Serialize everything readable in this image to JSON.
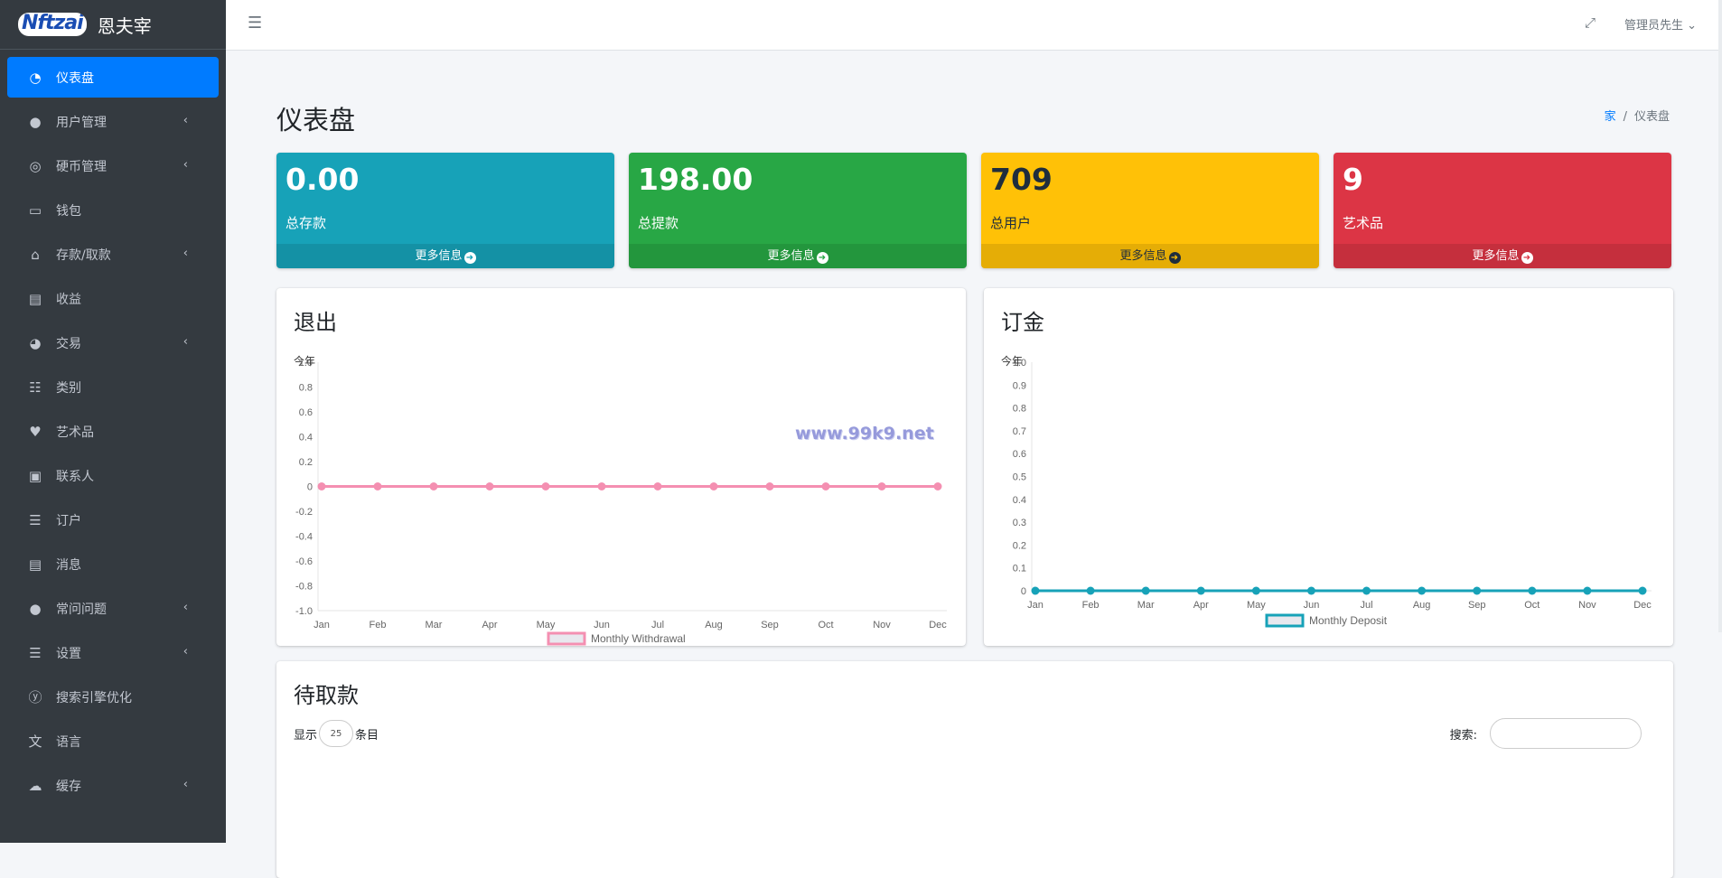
{
  "brand": {
    "logo_text": "Nftzai",
    "name": "恩夫宰"
  },
  "sidebar": {
    "items": [
      {
        "label": "仪表盘",
        "icon": "dashboard-icon",
        "glyph": "◔",
        "active": true,
        "chevron": false
      },
      {
        "label": "用户管理",
        "icon": "user-icon",
        "glyph": "●",
        "active": false,
        "chevron": true
      },
      {
        "label": "硬币管理",
        "icon": "coins-icon",
        "glyph": "◎",
        "active": false,
        "chevron": true
      },
      {
        "label": "钱包",
        "icon": "wallet-icon",
        "glyph": "▭",
        "active": false,
        "chevron": false
      },
      {
        "label": "存款/取款",
        "icon": "bank-icon",
        "glyph": "⌂",
        "active": false,
        "chevron": true
      },
      {
        "label": "收益",
        "icon": "money-bill-icon",
        "glyph": "▤",
        "active": false,
        "chevron": false
      },
      {
        "label": "交易",
        "icon": "pie-chart-icon",
        "glyph": "◕",
        "active": false,
        "chevron": true
      },
      {
        "label": "类别",
        "icon": "list-alt-icon",
        "glyph": "☷",
        "active": false,
        "chevron": false
      },
      {
        "label": "艺术品",
        "icon": "hand-holding-heart-icon",
        "glyph": "♥",
        "active": false,
        "chevron": false
      },
      {
        "label": "联系人",
        "icon": "address-book-icon",
        "glyph": "▣",
        "active": false,
        "chevron": false
      },
      {
        "label": "订户",
        "icon": "list-ol-icon",
        "glyph": "☰",
        "active": false,
        "chevron": false
      },
      {
        "label": "消息",
        "icon": "message-icon",
        "glyph": "▤",
        "active": false,
        "chevron": false
      },
      {
        "label": "常问问题",
        "icon": "user-question-icon",
        "glyph": "●",
        "active": false,
        "chevron": true
      },
      {
        "label": "设置",
        "icon": "list-icon",
        "glyph": "☰",
        "active": false,
        "chevron": true
      },
      {
        "label": "搜索引擎优化",
        "icon": "yoast-icon",
        "glyph": "ⓨ",
        "active": false,
        "chevron": false
      },
      {
        "label": "语言",
        "icon": "language-icon",
        "glyph": "文",
        "active": false,
        "chevron": false
      },
      {
        "label": "缓存",
        "icon": "cloud-icon",
        "glyph": "☁",
        "active": false,
        "chevron": true
      }
    ]
  },
  "topbar": {
    "user": "管理员先生"
  },
  "page": {
    "title": "仪表盘"
  },
  "breadcrumb": {
    "home": "家",
    "sep": "/",
    "current": "仪表盘"
  },
  "stats": [
    {
      "value": "0.00",
      "label": "总存款",
      "more": "更多信息",
      "color": "#17a2b8"
    },
    {
      "value": "198.00",
      "label": "总提款",
      "more": "更多信息",
      "color": "#28a745"
    },
    {
      "value": "709",
      "label": "总用户",
      "more": "更多信息",
      "color": "#ffc107"
    },
    {
      "value": "9",
      "label": "艺术品",
      "more": "更多信息",
      "color": "#dc3545"
    }
  ],
  "withdraw_card": {
    "title": "退出",
    "year_label": "今年"
  },
  "deposit_card": {
    "title": "订金",
    "year_label": "今年"
  },
  "watermark": "www.99k9.net",
  "chart_data": [
    {
      "type": "line",
      "categories": [
        "Jan",
        "Feb",
        "Mar",
        "Apr",
        "May",
        "Jun",
        "Jul",
        "Aug",
        "Sep",
        "Oct",
        "Nov",
        "Dec"
      ],
      "series": [
        {
          "name": "Monthly Withdrawal",
          "values": [
            0,
            0,
            0,
            0,
            0,
            0,
            0,
            0,
            0,
            0,
            0,
            0
          ],
          "color": "#f48fb1"
        }
      ],
      "yticks": [
        "1.0",
        "0.8",
        "0.6",
        "0.4",
        "0.2",
        "0",
        "-0.2",
        "-0.4",
        "-0.6",
        "-0.8",
        "-1.0"
      ],
      "ylim": [
        -1,
        1
      ],
      "legend": "bottom"
    },
    {
      "type": "line",
      "categories": [
        "Jan",
        "Feb",
        "Mar",
        "Apr",
        "May",
        "Jun",
        "Jul",
        "Aug",
        "Sep",
        "Oct",
        "Nov",
        "Dec"
      ],
      "series": [
        {
          "name": "Monthly Deposit",
          "values": [
            0,
            0,
            0,
            0,
            0,
            0,
            0,
            0,
            0,
            0,
            0,
            0
          ],
          "color": "#17a2b8"
        }
      ],
      "yticks": [
        "1.0",
        "0.9",
        "0.8",
        "0.7",
        "0.6",
        "0.5",
        "0.4",
        "0.3",
        "0.2",
        "0.1",
        "0"
      ],
      "ylim": [
        0,
        1
      ],
      "legend": "bottom"
    }
  ],
  "pending": {
    "title": "待取款",
    "show_label": "显示",
    "show_value": "25",
    "entries_label": "条目",
    "search_label": "搜索:"
  }
}
